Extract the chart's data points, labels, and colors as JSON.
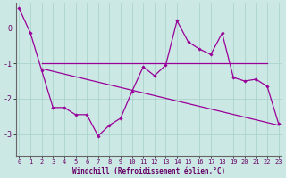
{
  "xlabel": "Windchill (Refroidissement éolien,°C)",
  "background_color": "#cce8e4",
  "grid_color": "#aad4cc",
  "line_color": "#990099",
  "axis_color": "#666666",
  "x_ticks": [
    0,
    1,
    2,
    3,
    4,
    5,
    6,
    7,
    8,
    9,
    10,
    11,
    12,
    13,
    14,
    15,
    16,
    17,
    18,
    19,
    20,
    21,
    22,
    23
  ],
  "y_ticks": [
    -3,
    -2,
    -1,
    0
  ],
  "ylim": [
    -3.6,
    0.7
  ],
  "xlim": [
    -0.3,
    23.3
  ],
  "series1_x": [
    0,
    1,
    2,
    3,
    4,
    5,
    6,
    7,
    8,
    9,
    10,
    11,
    12,
    13,
    14,
    15,
    16,
    17,
    18,
    19,
    20,
    21,
    22,
    23
  ],
  "series1_y": [
    0.55,
    -0.15,
    -1.2,
    -2.25,
    -2.25,
    -2.45,
    -2.45,
    -3.05,
    -2.75,
    -2.55,
    -1.8,
    -1.1,
    -1.35,
    -1.05,
    0.2,
    -0.4,
    -0.6,
    -0.75,
    -0.15,
    -1.4,
    -1.5,
    -1.45,
    -1.65,
    -2.7
  ],
  "series2_x": [
    2,
    22
  ],
  "series2_y": [
    -1.0,
    -1.0
  ],
  "series3_x": [
    2,
    23
  ],
  "series3_y": [
    -1.15,
    -2.75
  ],
  "tick_color": "#660066",
  "xlabel_color": "#660066",
  "xlabel_fontsize": 5.5,
  "tick_fontsize": 5.0
}
